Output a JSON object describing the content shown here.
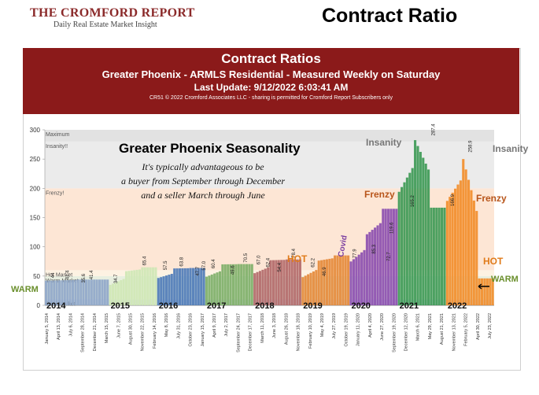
{
  "header": {
    "brand_name": "THE CROMFORD REPORT",
    "brand_tagline": "Daily Real Estate Market Insight",
    "page_title": "Contract Ratio"
  },
  "banner": {
    "title": "Contract Ratios",
    "subtitle": "Greater Phoenix - ARMLS Residential - Measured Weekly on Saturday",
    "update": "Last Update: 9/12/2022 6:03:41 AM",
    "copyright": "CR51 © 2022 Cromford Associates LLC - sharing is permitted for Cromford Report Subscribers only"
  },
  "annotations": {
    "heading": "Greater Phoenix Seasonality",
    "body_lines": [
      "It's typically advantageous to be",
      "a buyer from September through December",
      "and a seller March through June"
    ],
    "labels": [
      {
        "text": "WARM",
        "color": "#6a8f2c"
      },
      {
        "text": "HOT",
        "color": "#e07b1a"
      },
      {
        "text": "Covid",
        "color": "#7a3ea0"
      },
      {
        "text": "Frenzy",
        "color": "#b8551a"
      },
      {
        "text": "Insanity",
        "color": "#777777"
      },
      {
        "text": "Insanity",
        "color": "#777777"
      },
      {
        "text": "Frenzy",
        "color": "#b8551a"
      },
      {
        "text": "HOT",
        "color": "#e07b1a"
      },
      {
        "text": "WARM",
        "color": "#6a8f2c"
      }
    ]
  },
  "chart_data": {
    "type": "bar",
    "ylim": [
      0,
      300
    ],
    "yticks": [
      "0",
      "50",
      "100",
      "150",
      "200",
      "250",
      "300"
    ],
    "zones": [
      {
        "label": "Cool Market",
        "from": 0,
        "to": 10,
        "color": "#d7dde6"
      },
      {
        "label": "Warm Market",
        "from": 10,
        "to": 50,
        "color": "#e8efe0"
      },
      {
        "label": "Hot Market",
        "from": 50,
        "to": 60,
        "color": "#fdf2e2"
      },
      {
        "label": "Frenzy!",
        "from": 60,
        "to": 200,
        "color": "#fde6d5"
      },
      {
        "label": "Insanity!!",
        "from": 200,
        "to": 280,
        "color": "#ebebeb"
      },
      {
        "label": "Maximum",
        "from": 280,
        "to": 300,
        "color": "#e2e2e2"
      }
    ],
    "years": [
      "2014",
      "2015",
      "2016",
      "2017",
      "2018",
      "2019",
      "2020",
      "2021",
      "2022"
    ],
    "year_colors": [
      "#8fa7c9",
      "#cfe7b5",
      "#4f7cb8",
      "#7fb069",
      "#b36a6a",
      "#e58a3a",
      "#8c4fb0",
      "#3e9a56",
      "#f28e2b"
    ],
    "year_segments": [
      {
        "year": "2014",
        "start": 0,
        "end": 3,
        "points": [
          [
            0,
            42
          ],
          [
            2,
            44
          ],
          [
            3,
            44
          ]
        ]
      },
      {
        "year": "2015",
        "start": 4,
        "end": 6,
        "points": [
          [
            4,
            34
          ],
          [
            5,
            58
          ],
          [
            6,
            65
          ]
        ]
      },
      {
        "year": "2016",
        "start": 7,
        "end": 9,
        "points": [
          [
            7,
            46
          ],
          [
            8,
            63
          ],
          [
            9,
            63.8
          ]
        ]
      },
      {
        "year": "2017",
        "start": 10,
        "end": 12,
        "points": [
          [
            10,
            48
          ],
          [
            11,
            70
          ],
          [
            12,
            70.5
          ]
        ]
      },
      {
        "year": "2018",
        "start": 13,
        "end": 15,
        "points": [
          [
            13,
            54
          ],
          [
            14,
            77
          ],
          [
            15,
            78.4
          ]
        ]
      },
      {
        "year": "2019",
        "start": 16,
        "end": 18,
        "points": [
          [
            16,
            47
          ],
          [
            17,
            76
          ],
          [
            18,
            85.3
          ]
        ]
      },
      {
        "year": "2020",
        "start": 19,
        "end": 21,
        "points": [
          [
            19,
            73
          ],
          [
            20,
            119.6
          ],
          [
            21,
            165
          ]
        ]
      },
      {
        "year": "2021",
        "start": 22,
        "end": 24,
        "points": [
          [
            22,
            190
          ],
          [
            23,
            287.4
          ],
          [
            24,
            166.9
          ]
        ]
      },
      {
        "year": "2022",
        "start": 25,
        "end": 27,
        "points": [
          [
            25,
            175
          ],
          [
            26,
            258.9
          ],
          [
            27,
            46
          ]
        ]
      }
    ],
    "labeled_values": [
      "35.6",
      "34.7",
      "44",
      "41.4",
      "41.4",
      "65.4",
      "57.5",
      "47.7",
      "63.8",
      "57.0",
      "60.4",
      "49.6",
      "70.5",
      "67.0",
      "62.4",
      "54.4",
      "78.4",
      "62.2",
      "46.9",
      "77.9",
      "85.3",
      "72.7",
      "119.6",
      "165.2",
      "287.4",
      "166.9",
      "258.9"
    ],
    "x_tick_labels": [
      "January 5, 2014",
      "April 13, 2014",
      "July 6, 2014",
      "September 28, 2014",
      "December 21, 2014",
      "March 15, 2015",
      "June 7, 2015",
      "August 30, 2015",
      "November 22, 2015",
      "February 14, 2016",
      "May 8, 2016",
      "July 31, 2016",
      "October 23, 2016",
      "January 15, 2017",
      "April 9, 2017",
      "July 2, 2017",
      "September 24, 2017",
      "December 17, 2017",
      "March 11, 2018",
      "June 3, 2018",
      "August 26, 2018",
      "November 18, 2018",
      "February 10, 2019",
      "May 4, 2019",
      "July 27, 2019",
      "October 19, 2019",
      "January 11, 2020",
      "April 4, 2020",
      "June 27, 2020",
      "September 19, 2020",
      "December 12, 2020",
      "March 6, 2021",
      "May 29, 2021",
      "August 21, 2021",
      "November 13, 2021",
      "February 5, 2022",
      "April 30, 2022",
      "July 23, 2022"
    ]
  }
}
